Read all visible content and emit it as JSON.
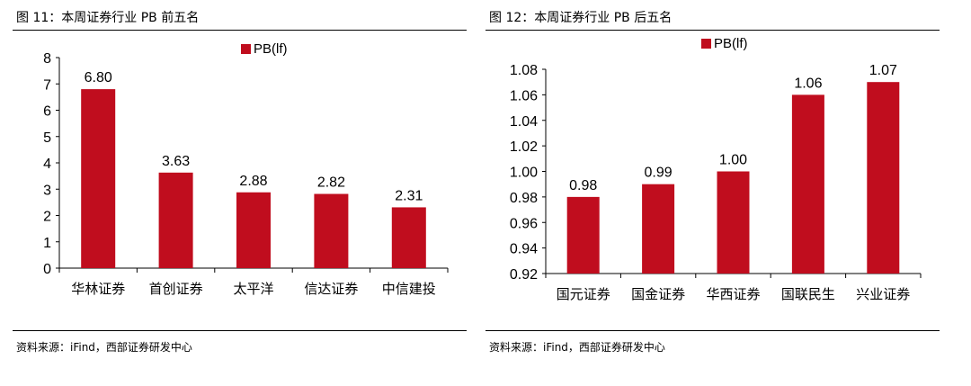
{
  "figures": [
    {
      "title": "图 11：本周证券行业 PB 前五名",
      "source": "资料来源：iFind，西部证券研发中心",
      "chart_data": {
        "type": "bar",
        "categories": [
          "华林证券",
          "首创证券",
          "太平洋",
          "信达证券",
          "中信建投"
        ],
        "series": [
          {
            "name": "PB(lf)",
            "values": [
              6.8,
              3.63,
              2.88,
              2.82,
              2.31
            ]
          }
        ],
        "data_labels": [
          "6.80",
          "3.63",
          "2.88",
          "2.82",
          "2.31"
        ],
        "y_ticks": [
          "0",
          "1",
          "2",
          "3",
          "4",
          "5",
          "6",
          "7",
          "8"
        ],
        "ylim": [
          0,
          8
        ],
        "legend_position": "top",
        "bar_color": "#c00d1e",
        "grid": false
      }
    },
    {
      "title": "图 12：本周证券行业 PB 后五名",
      "source": "资料来源：iFind，西部证券研发中心",
      "chart_data": {
        "type": "bar",
        "categories": [
          "国元证券",
          "国金证券",
          "华西证券",
          "国联民生",
          "兴业证券"
        ],
        "series": [
          {
            "name": "PB(lf)",
            "values": [
              0.98,
              0.99,
              1.0,
              1.06,
              1.07
            ]
          }
        ],
        "data_labels": [
          "0.98",
          "0.99",
          "1.00",
          "1.06",
          "1.07"
        ],
        "y_ticks": [
          "0.92",
          "0.94",
          "0.96",
          "0.98",
          "1.00",
          "1.02",
          "1.04",
          "1.06",
          "1.08"
        ],
        "ylim": [
          0.92,
          1.08
        ],
        "legend_position": "top",
        "bar_color": "#c00d1e",
        "grid": false
      }
    }
  ]
}
